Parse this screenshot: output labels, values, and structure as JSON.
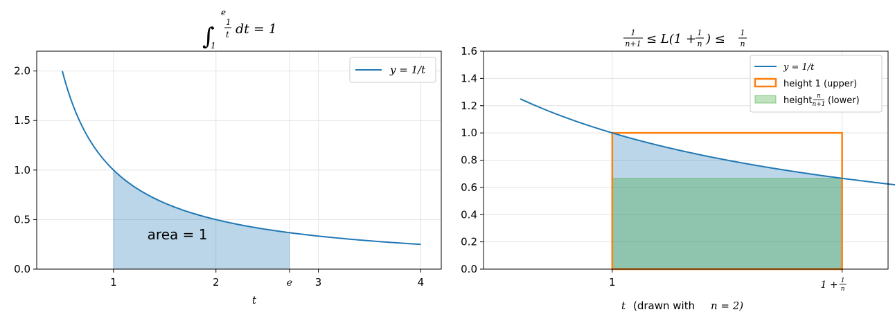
{
  "chart_data": [
    {
      "type": "line",
      "title": "∫₁ᵉ (1/t) dt = 1",
      "xlabel": "t",
      "ylabel": "",
      "xlim": [
        0.25,
        4.2
      ],
      "ylim": [
        0,
        2.2
      ],
      "xticks": [
        1,
        2,
        2.718,
        3,
        4
      ],
      "xtick_labels": [
        "1",
        "2",
        "e",
        "3",
        "4"
      ],
      "yticks": [
        0,
        0.5,
        1,
        1.5,
        2
      ],
      "ytick_labels": [
        "0.0",
        "0.5",
        "1.0",
        "1.5",
        "2.0"
      ],
      "grid": true,
      "legend_position": "top-right",
      "series": [
        {
          "name": "y = 1/t",
          "function": "1/t",
          "domain": [
            0.5,
            4
          ],
          "color": "#1f77b4"
        }
      ],
      "shaded_region": {
        "from": 1,
        "to": 2.718,
        "under": "1/t",
        "color": "#1f77b4"
      },
      "annotation": {
        "text": "area = 1",
        "x": 1.33,
        "y": 0.3
      }
    },
    {
      "type": "line",
      "title": "1/(n+1) ≤ L(1 + 1/n) ≤ 1/n",
      "xlabel": "t  (drawn with n = 2)",
      "xlabel_text": "(drawn with",
      "xlabel_var": "t",
      "xlabel_eq": "n = 2)",
      "ylabel": "",
      "xlim": [
        0.72,
        1.6
      ],
      "ylim": [
        0,
        1.6
      ],
      "xticks": [
        1,
        1.5
      ],
      "xtick_labels": [
        "1",
        "1 + 1/n"
      ],
      "yticks": [
        0,
        0.2,
        0.4,
        0.6,
        0.8,
        1.0,
        1.2,
        1.4,
        1.6
      ],
      "ytick_labels": [
        "0.0",
        "0.2",
        "0.4",
        "0.6",
        "0.8",
        "1.0",
        "1.2",
        "1.4",
        "1.6"
      ],
      "grid": true,
      "legend_position": "top-right",
      "n": 2,
      "series": [
        {
          "name": "y = 1/t",
          "function": "1/t",
          "domain": [
            0.8,
            1.64
          ],
          "color": "#1f77b4"
        }
      ],
      "shaded_region": {
        "from": 1,
        "to": 1.5,
        "under": "1/t",
        "color": "#1f77b4"
      },
      "rect_upper": {
        "x0": 1,
        "x1": 1.5,
        "height": 1.0,
        "color": "#ff7f0e",
        "label": "height 1 (upper)"
      },
      "rect_lower": {
        "x0": 1,
        "x1": 1.5,
        "height": 0.6667,
        "color": "#2ca02c",
        "label_prefix": "height",
        "label_suffix": "(lower)"
      }
    }
  ]
}
